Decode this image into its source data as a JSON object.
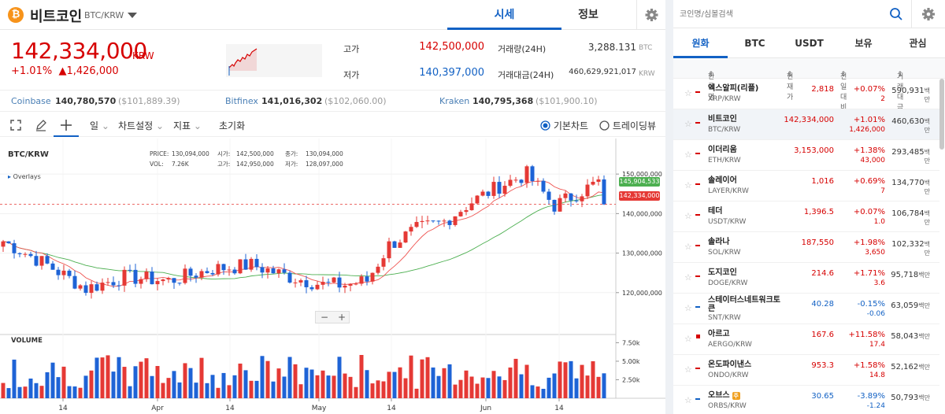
{
  "header": {
    "coin_name": "비트코인",
    "pair": "BTC/KRW",
    "tab_quote": "시세",
    "tab_info": "정보"
  },
  "price": {
    "current": "142,334,000",
    "unit": "KRW",
    "change_rate": "+1.01%",
    "change_amount": "▲1,426,000"
  },
  "stats": {
    "high_label": "고가",
    "high": "142,500,000",
    "low_label": "저가",
    "low": "140,397,000",
    "vol_label": "거래량(24H)",
    "vol": "3,288.131",
    "vol_unit": "BTC",
    "amt_label": "거래대금(24H)",
    "amt": "460,629,921,017",
    "amt_unit": "KRW"
  },
  "exchanges": [
    {
      "name": "Coinbase",
      "price": "140,780,570",
      "usd": "($101,889.39)"
    },
    {
      "name": "Bitfinex",
      "price": "141,016,302",
      "usd": "($102,060.00)"
    },
    {
      "name": "Kraken",
      "price": "140,795,368",
      "usd": "($101,900.10)"
    }
  ],
  "toolbar": {
    "period": "일",
    "chart_settings": "차트설정",
    "indicators": "지표",
    "reset": "초기화",
    "basic_chart": "기본차트",
    "tradingview": "트레이딩뷰"
  },
  "chart_info": {
    "pair": "BTC/KRW",
    "price_label": "PRICE:",
    "price": "130,094,000",
    "open_label": "시가:",
    "open": "142,500,000",
    "close_label": "종가:",
    "close": "130,094,000",
    "vol_label": "VOL:",
    "vol": "7.26K",
    "high_label": "고가:",
    "high": "142,950,000",
    "low_label": "저가:",
    "low": "128,097,000",
    "overlays": "Overlays",
    "volume": "VOLUME",
    "ma_label": "145,904,533",
    "current_label": "142,334,000"
  },
  "chart_data": {
    "type": "candlestick",
    "y_ticks": [
      "150,000,000",
      "140,000,000",
      "130,000,000",
      "120,000,000"
    ],
    "vol_ticks": [
      "7.50k",
      "5.00k",
      "2.50k"
    ],
    "x_labels": [
      "14",
      "Apr",
      "14",
      "May",
      "14",
      "Jun",
      "14"
    ],
    "ylim": [
      110000000,
      157000000
    ]
  },
  "search": {
    "placeholder": "코인명/심볼검색"
  },
  "market_tabs": [
    "원화",
    "BTC",
    "USDT",
    "보유",
    "관심"
  ],
  "table_headers": {
    "name": "한글명",
    "price": "현재가",
    "change": "전일대비",
    "volume": "거래대금"
  },
  "coins": [
    {
      "name": "엑스알피(리플)",
      "symbol": "XRP/KRW",
      "price": "2,818",
      "pct": "+0.07%",
      "abs": "2",
      "vol": "590,931",
      "dir": "up"
    },
    {
      "name": "비트코인",
      "symbol": "BTC/KRW",
      "price": "142,334,000",
      "pct": "+1.01%",
      "abs": "1,426,000",
      "vol": "460,630",
      "dir": "up"
    },
    {
      "name": "이더리움",
      "symbol": "ETH/KRW",
      "price": "3,153,000",
      "pct": "+1.38%",
      "abs": "43,000",
      "vol": "293,485",
      "dir": "up"
    },
    {
      "name": "솔레이어",
      "symbol": "LAYER/KRW",
      "price": "1,016",
      "pct": "+0.69%",
      "abs": "7",
      "vol": "134,770",
      "dir": "up"
    },
    {
      "name": "테더",
      "symbol": "USDT/KRW",
      "price": "1,396.5",
      "pct": "+0.07%",
      "abs": "1.0",
      "vol": "106,784",
      "dir": "up"
    },
    {
      "name": "솔라나",
      "symbol": "SOL/KRW",
      "price": "187,550",
      "pct": "+1.98%",
      "abs": "3,650",
      "vol": "102,332",
      "dir": "up"
    },
    {
      "name": "도지코인",
      "symbol": "DOGE/KRW",
      "price": "214.6",
      "pct": "+1.71%",
      "abs": "3.6",
      "vol": "95,718",
      "dir": "up"
    },
    {
      "name": "스테이터스네트워크토큰",
      "symbol": "SNT/KRW",
      "price": "40.28",
      "pct": "-0.15%",
      "abs": "-0.06",
      "vol": "63,059",
      "dir": "down"
    },
    {
      "name": "아르고",
      "symbol": "AERGO/KRW",
      "price": "167.6",
      "pct": "+11.58%",
      "abs": "17.4",
      "vol": "58,043",
      "dir": "up"
    },
    {
      "name": "온도파이낸스",
      "symbol": "ONDO/KRW",
      "price": "953.3",
      "pct": "+1.58%",
      "abs": "14.8",
      "vol": "52,162",
      "dir": "up"
    },
    {
      "name": "오브스",
      "symbol": "ORBS/KRW",
      "price": "30.65",
      "pct": "-3.89%",
      "abs": "-1.24",
      "vol": "50,793",
      "dir": "down"
    }
  ],
  "vol_unit": "백만"
}
